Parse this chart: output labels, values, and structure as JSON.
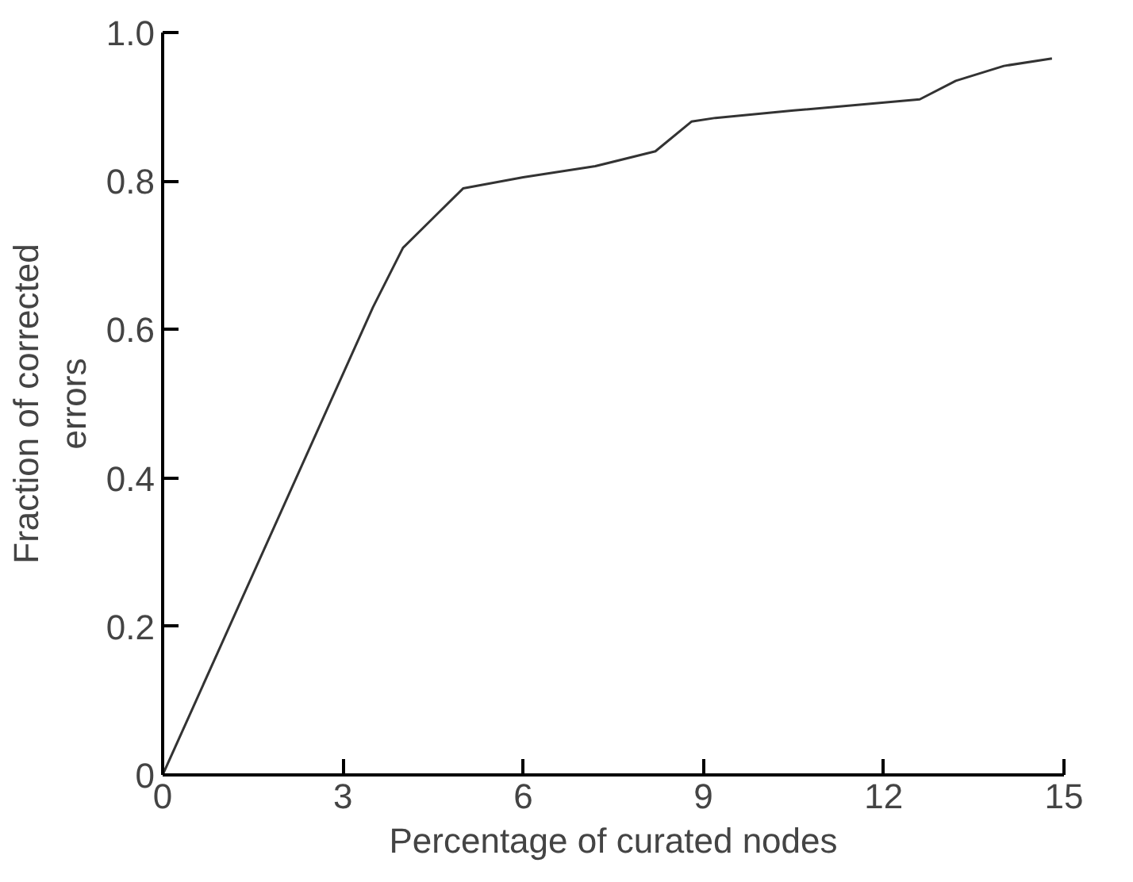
{
  "chart_data": {
    "type": "line",
    "xlabel": "Percentage of curated nodes",
    "ylabel": "Fraction of corrected\nerrors",
    "series": [
      {
        "color": "#333333",
        "x": [
          0,
          0.5,
          1,
          1.5,
          2,
          2.5,
          3,
          3.5,
          4,
          4.5,
          5,
          6,
          7.2,
          8.2,
          8.8,
          9.2,
          10.5,
          12.6,
          13.2,
          14,
          14.8
        ],
        "values": [
          0,
          0.09,
          0.18,
          0.27,
          0.36,
          0.45,
          0.54,
          0.63,
          0.71,
          0.75,
          0.79,
          0.805,
          0.82,
          0.84,
          0.88,
          0.885,
          0.895,
          0.91,
          0.935,
          0.955,
          0.965
        ]
      }
    ],
    "xlim": [
      0,
      15
    ],
    "ylim": [
      0,
      1
    ],
    "xticks": [
      0,
      3,
      6,
      9,
      12,
      15
    ],
    "yticks": [
      0,
      0.2,
      0.4,
      0.6,
      0.8,
      {
        "value": 1,
        "label": "1.0"
      }
    ],
    "marker": "none",
    "line_style": "solid"
  }
}
